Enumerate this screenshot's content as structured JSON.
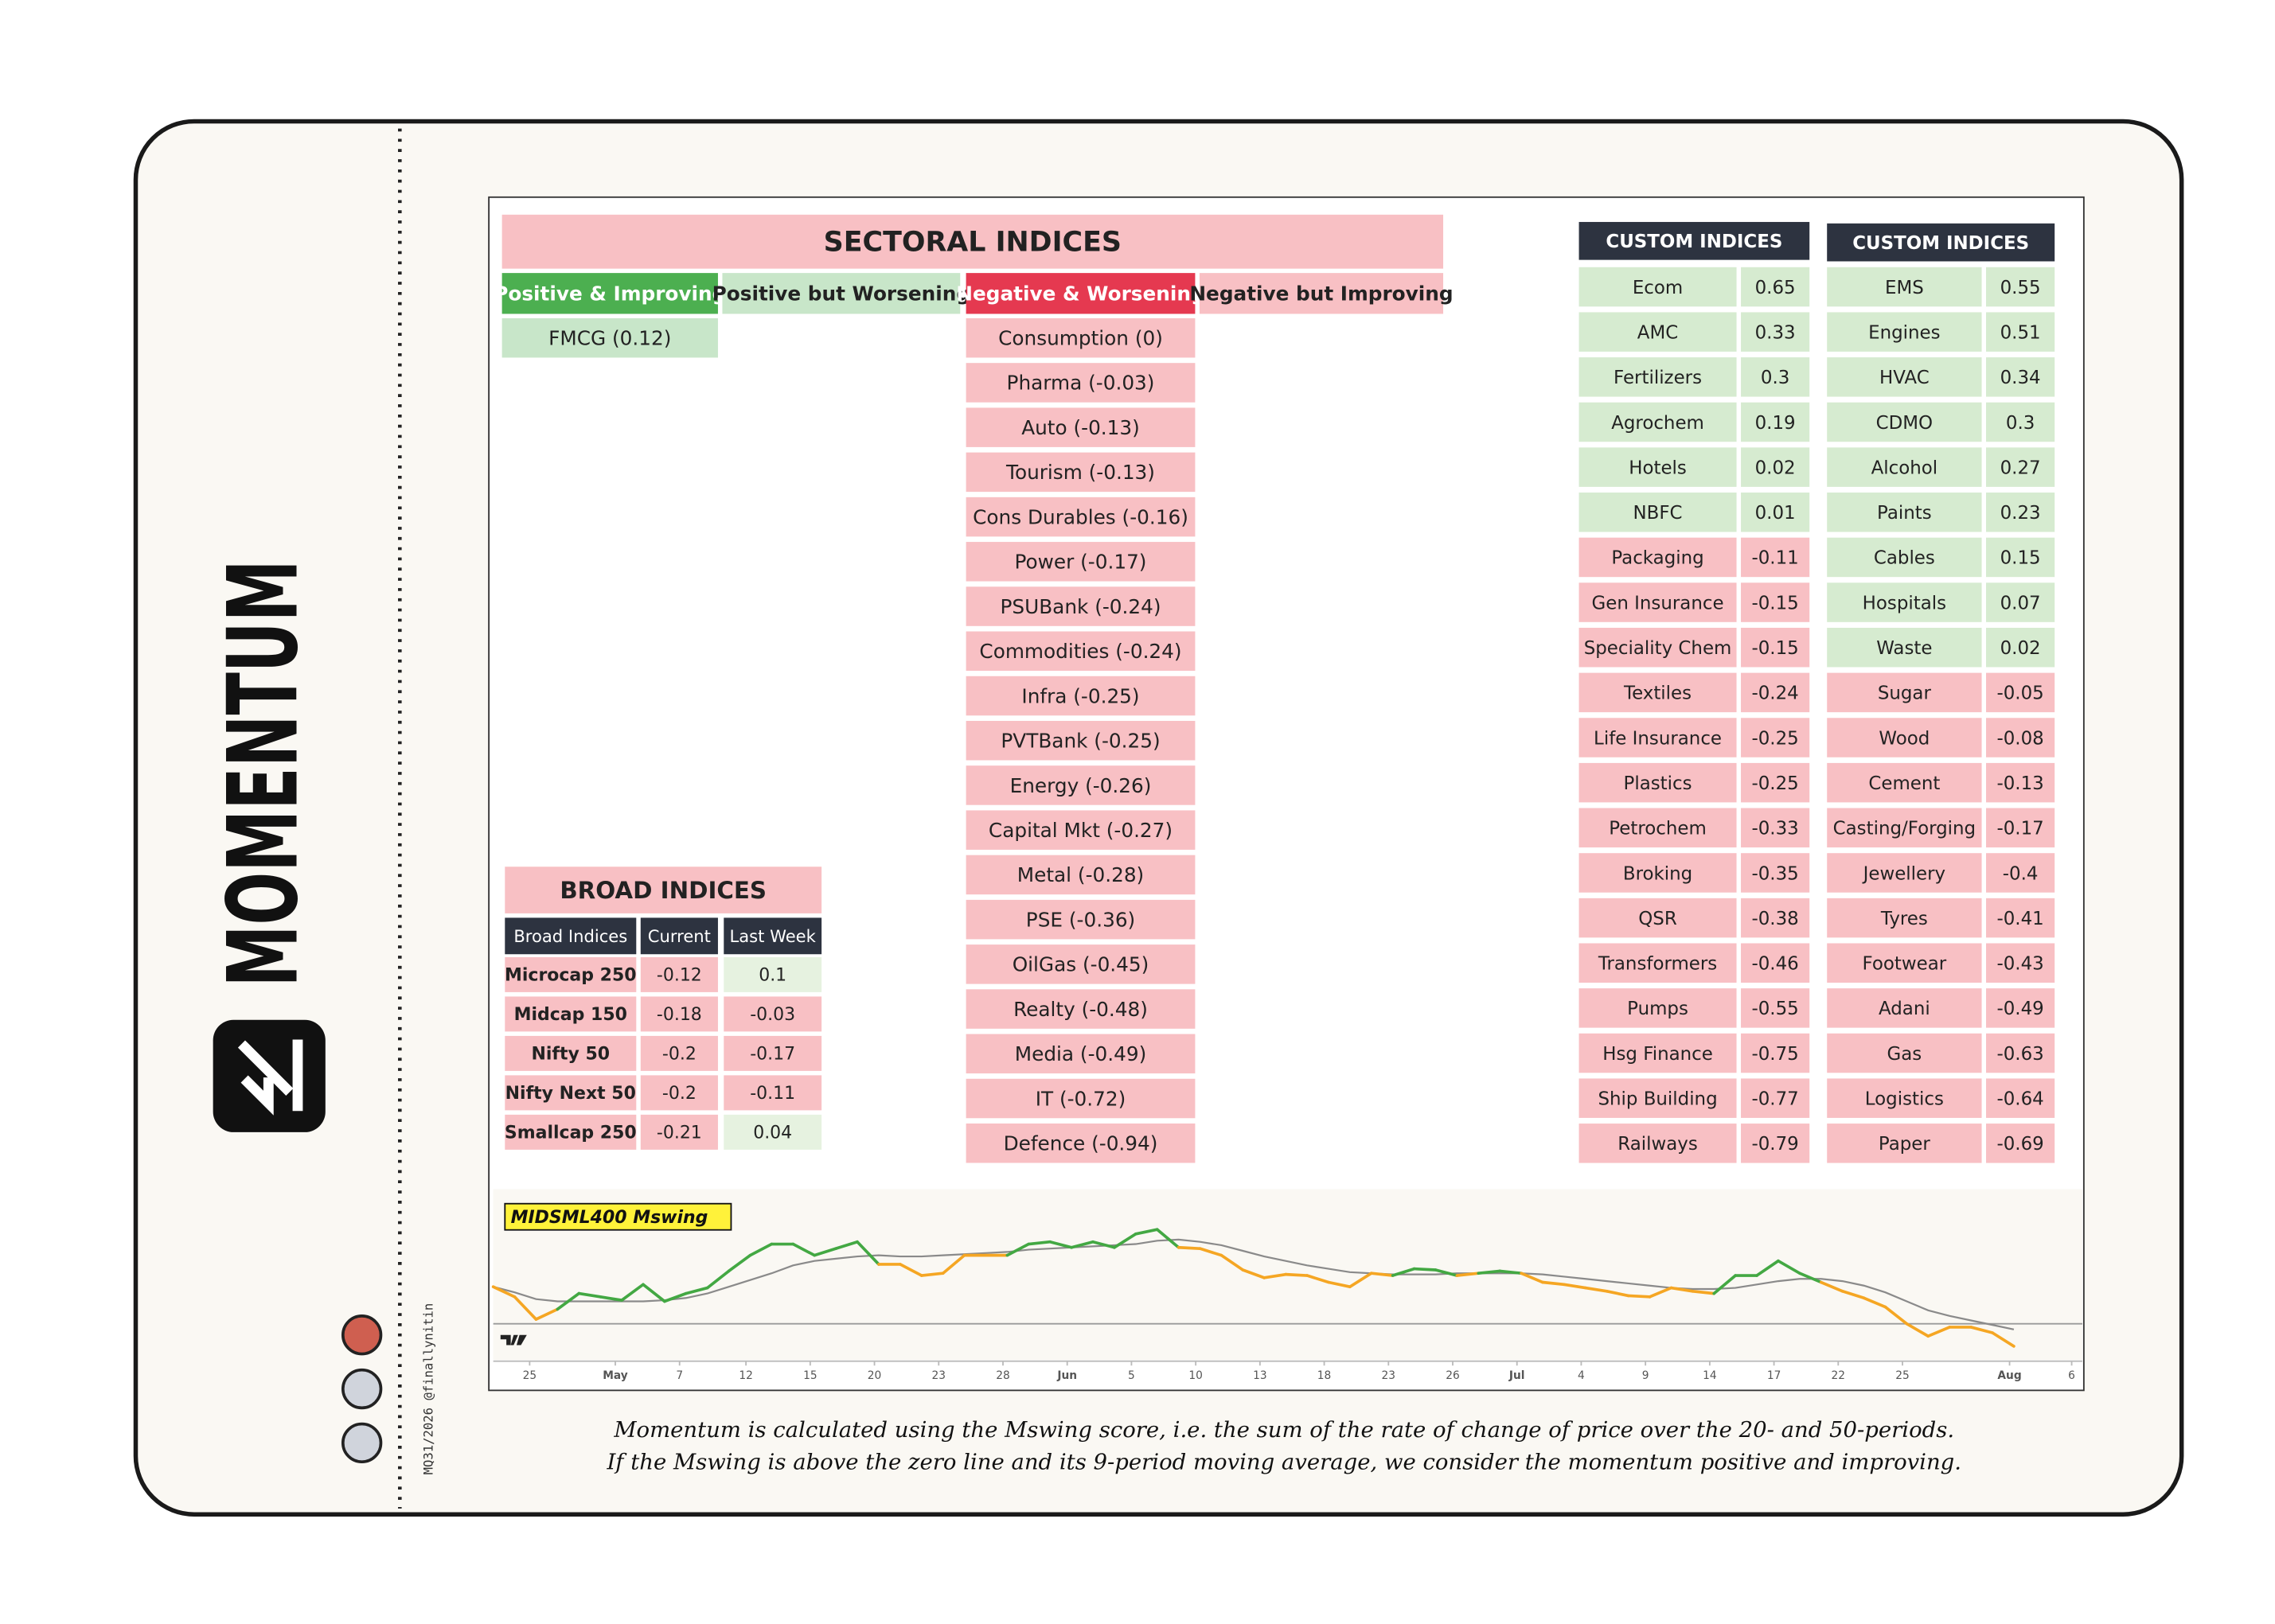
{
  "brand": "MOMENTUM",
  "credit": "MQ31/2026 @finallynitin",
  "sectoral": {
    "title": "SECTORAL INDICES",
    "columns": [
      {
        "header": "Positive & Improving",
        "items": [
          "FMCG (0.12)"
        ]
      },
      {
        "header": "Positive but Worsening",
        "items": []
      },
      {
        "header": "Negative & Worsening",
        "items": [
          "Consumption (0)",
          "Pharma (-0.03)",
          "Auto (-0.13)",
          "Tourism (-0.13)",
          "Cons Durables (-0.16)",
          "Power (-0.17)",
          "PSUBank (-0.24)",
          "Commodities (-0.24)",
          "Infra (-0.25)",
          "PVTBank (-0.25)",
          "Energy (-0.26)",
          "Capital Mkt (-0.27)",
          "Metal (-0.28)",
          "PSE (-0.36)",
          "OilGas (-0.45)",
          "Realty (-0.48)",
          "Media (-0.49)",
          "IT (-0.72)",
          "Defence (-0.94)"
        ]
      },
      {
        "header": "Negative but Improving",
        "items": []
      }
    ]
  },
  "broad": {
    "title": "BROAD INDICES",
    "headers": [
      "Broad Indices",
      "Current",
      "Last Week"
    ],
    "rows": [
      [
        "Microcap 250",
        -0.12,
        0.1
      ],
      [
        "Midcap 150",
        -0.18,
        -0.03
      ],
      [
        "Nifty 50",
        -0.2,
        -0.17
      ],
      [
        "Nifty Next 50",
        -0.2,
        -0.11
      ],
      [
        "Smallcap 250",
        -0.21,
        0.04
      ]
    ]
  },
  "custom": [
    {
      "title": "CUSTOM INDICES",
      "rows": [
        [
          "Ecom",
          0.65
        ],
        [
          "AMC",
          0.33
        ],
        [
          "Fertilizers",
          0.3
        ],
        [
          "Agrochem",
          0.19
        ],
        [
          "Hotels",
          0.02
        ],
        [
          "NBFC",
          0.01
        ],
        [
          "Packaging",
          -0.11
        ],
        [
          "Gen Insurance",
          -0.15
        ],
        [
          "Speciality Chem",
          -0.15
        ],
        [
          "Textiles",
          -0.24
        ],
        [
          "Life Insurance",
          -0.25
        ],
        [
          "Plastics",
          -0.25
        ],
        [
          "Petrochem",
          -0.33
        ],
        [
          "Broking",
          -0.35
        ],
        [
          "QSR",
          -0.38
        ],
        [
          "Transformers",
          -0.46
        ],
        [
          "Pumps",
          -0.55
        ],
        [
          "Hsg Finance",
          -0.75
        ],
        [
          "Ship Building",
          -0.77
        ],
        [
          "Railways",
          -0.79
        ]
      ]
    },
    {
      "title": "CUSTOM INDICES",
      "rows": [
        [
          "EMS",
          0.55
        ],
        [
          "Engines",
          0.51
        ],
        [
          "HVAC",
          0.34
        ],
        [
          "CDMO",
          0.3
        ],
        [
          "Alcohol",
          0.27
        ],
        [
          "Paints",
          0.23
        ],
        [
          "Cables",
          0.15
        ],
        [
          "Hospitals",
          0.07
        ],
        [
          "Waste",
          0.02
        ],
        [
          "Sugar",
          -0.05
        ],
        [
          "Wood",
          -0.08
        ],
        [
          "Cement",
          -0.13
        ],
        [
          "Casting/Forging",
          -0.17
        ],
        [
          "Jewellery",
          -0.4
        ],
        [
          "Tyres",
          -0.41
        ],
        [
          "Footwear",
          -0.43
        ],
        [
          "Adani",
          -0.49
        ],
        [
          "Gas",
          -0.63
        ],
        [
          "Logistics",
          -0.64
        ],
        [
          "Paper",
          -0.69
        ]
      ]
    }
  ],
  "chart_data": {
    "type": "line",
    "title": "MIDSML400 Mswing",
    "x": [
      0,
      1,
      2,
      3,
      4,
      5,
      6,
      7,
      8,
      9,
      10,
      11,
      12,
      13,
      14,
      15,
      16,
      17,
      18,
      19,
      20,
      21,
      22,
      23,
      24,
      25,
      26,
      27,
      28,
      29,
      30,
      31,
      32,
      33,
      34,
      35,
      36,
      37,
      38,
      39,
      40,
      41,
      42,
      43,
      44,
      45,
      46,
      47,
      48,
      49,
      50,
      51,
      52,
      53,
      54,
      55,
      56,
      57,
      58,
      59,
      60,
      61,
      62,
      63,
      64,
      65,
      66,
      67,
      68,
      69,
      70,
      71
    ],
    "series": [
      {
        "color": "#43a843",
        "values": [
          0.33,
          0.24,
          0.04,
          0.13,
          0.27,
          0.24,
          0.21,
          0.35,
          0.2,
          0.27,
          0.32,
          0.47,
          0.61,
          0.71,
          0.71,
          0.61,
          0.67,
          0.73,
          0.53,
          0.53,
          0.43,
          0.45,
          0.61,
          0.61,
          0.61,
          0.71,
          0.73,
          0.68,
          0.73,
          0.68,
          0.8,
          0.84,
          0.68,
          0.67,
          0.61,
          0.48,
          0.41,
          0.44,
          0.43,
          0.37,
          0.33,
          0.45,
          0.43,
          0.49,
          0.48,
          0.43,
          0.45,
          0.47,
          0.45,
          0.37,
          0.35,
          0.32,
          0.29,
          0.25,
          0.24,
          0.32,
          0.29,
          0.27,
          0.43,
          0.43,
          0.56,
          0.45,
          0.37,
          0.29,
          0.23,
          0.15,
          0,
          -0.11,
          -0.03,
          -0.03,
          -0.08,
          -0.2
        ]
      },
      {
        "color": "#8a8a8a",
        "values": [
          0.33,
          0.28,
          0.22,
          0.2,
          0.2,
          0.2,
          0.2,
          0.2,
          0.21,
          0.23,
          0.27,
          0.33,
          0.39,
          0.45,
          0.52,
          0.56,
          0.58,
          0.6,
          0.61,
          0.6,
          0.6,
          0.61,
          0.62,
          0.63,
          0.64,
          0.66,
          0.67,
          0.68,
          0.69,
          0.7,
          0.71,
          0.74,
          0.75,
          0.73,
          0.7,
          0.65,
          0.6,
          0.56,
          0.52,
          0.49,
          0.46,
          0.45,
          0.44,
          0.44,
          0.44,
          0.45,
          0.45,
          0.45,
          0.45,
          0.44,
          0.42,
          0.4,
          0.38,
          0.36,
          0.34,
          0.32,
          0.31,
          0.31,
          0.32,
          0.35,
          0.38,
          0.4,
          0.4,
          0.38,
          0.34,
          0.28,
          0.2,
          0.12,
          0.07,
          0.03,
          -0.01,
          -0.05
        ]
      }
    ],
    "below_ma_color": "#f5a623",
    "zero_line": 0,
    "xlim": [
      0,
      74.2
    ],
    "ylim": [
      -0.32,
      1.2
    ],
    "xticks": [
      {
        "value": 1.7,
        "label": "25"
      },
      {
        "value": 5.7,
        "label": "May"
      },
      {
        "value": 8.7,
        "label": "7"
      },
      {
        "value": 11.8,
        "label": "12"
      },
      {
        "value": 14.8,
        "label": "15"
      },
      {
        "value": 17.8,
        "label": "20"
      },
      {
        "value": 20.8,
        "label": "23"
      },
      {
        "value": 23.8,
        "label": "28"
      },
      {
        "value": 26.8,
        "label": "Jun"
      },
      {
        "value": 29.8,
        "label": "5"
      },
      {
        "value": 32.8,
        "label": "10"
      },
      {
        "value": 35.8,
        "label": "13"
      },
      {
        "value": 38.8,
        "label": "18"
      },
      {
        "value": 41.8,
        "label": "23"
      },
      {
        "value": 44.8,
        "label": "26"
      },
      {
        "value": 47.8,
        "label": "Jul"
      },
      {
        "value": 50.8,
        "label": "4"
      },
      {
        "value": 53.8,
        "label": "9"
      },
      {
        "value": 56.8,
        "label": "14"
      },
      {
        "value": 59.8,
        "label": "17"
      },
      {
        "value": 62.8,
        "label": "22"
      },
      {
        "value": 65.8,
        "label": "25"
      },
      {
        "value": 70.8,
        "label": "Aug"
      },
      {
        "value": 73.7,
        "label": "6"
      }
    ]
  },
  "caption": [
    "Momentum is calculated using the Mswing score, i.e. the sum of the rate of change of price over the 20- and 50-periods.",
    "If the Mswing is above the zero line and its 9-period moving average, we consider the momentum positive and improving."
  ]
}
